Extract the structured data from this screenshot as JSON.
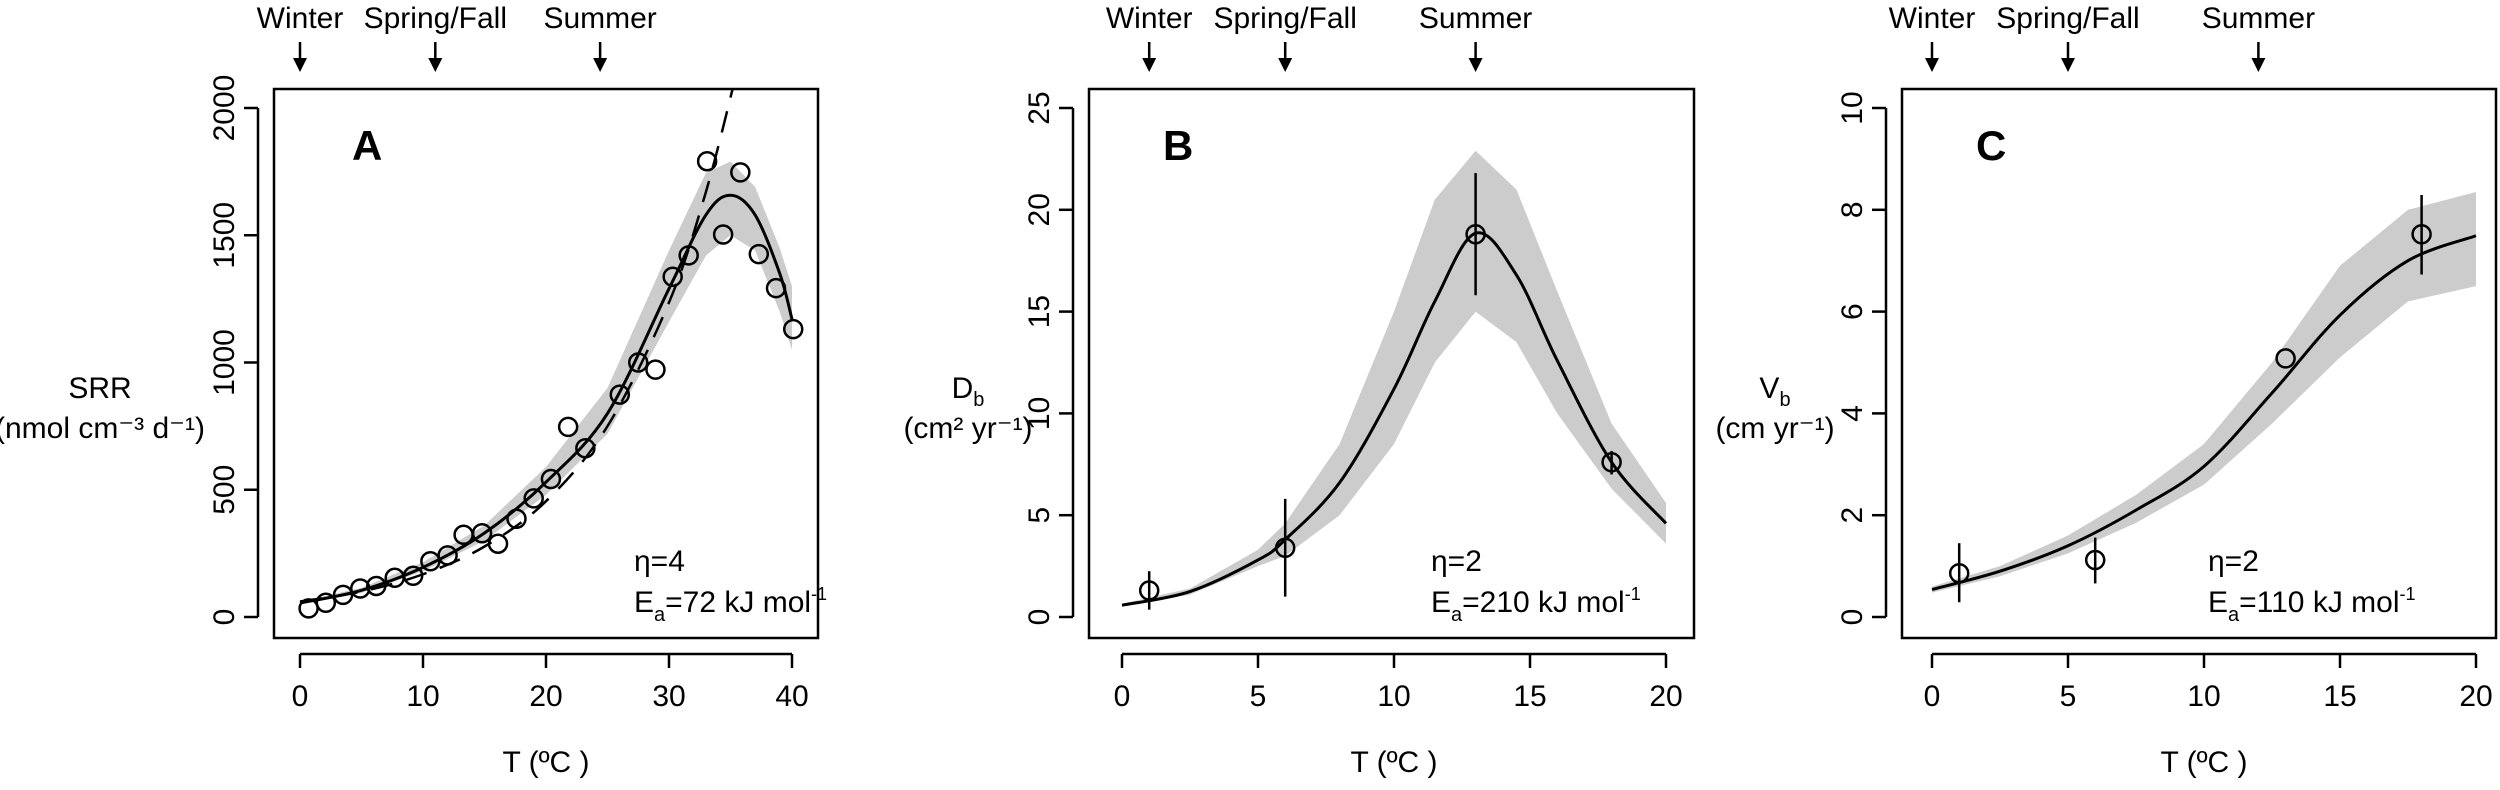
{
  "chart_data": [
    {
      "type": "scatter",
      "panel_label": "A",
      "xlabel": "T (ºC )",
      "ylabel": {
        "symbol": "SRR",
        "sub": "",
        "units": "(nmol cm⁻³ d⁻¹)"
      },
      "xlim": [
        -0.9,
        40.9
      ],
      "ylim": [
        -40,
        2086
      ],
      "x_ticks": [
        0,
        10,
        20,
        30,
        40
      ],
      "y_ticks": [
        0,
        500,
        1000,
        1500,
        2000
      ],
      "grid": false,
      "seasons": [
        {
          "label": "Winter",
          "x": 0
        },
        {
          "label": "Spring/Fall",
          "x": 11
        },
        {
          "label": "Summer",
          "x": 24.4
        }
      ],
      "annotation": {
        "eta": "η=4",
        "ea_symbol": "E",
        "ea_sub": "a",
        "ea_rest": "=72 kJ mol",
        "ea_sup": "-1"
      },
      "points": [
        [
          0.7,
          34
        ],
        [
          2.1,
          56
        ],
        [
          3.5,
          87
        ],
        [
          4.9,
          112
        ],
        [
          6.2,
          122
        ],
        [
          7.7,
          154
        ],
        [
          9.2,
          162
        ],
        [
          10.6,
          219
        ],
        [
          12.0,
          242
        ],
        [
          13.3,
          323
        ],
        [
          14.8,
          329
        ],
        [
          16.1,
          288
        ],
        [
          17.6,
          386
        ],
        [
          19.0,
          466
        ],
        [
          20.4,
          542
        ],
        [
          21.8,
          747
        ],
        [
          23.2,
          663
        ],
        [
          26.0,
          874
        ],
        [
          27.5,
          1000
        ],
        [
          28.9,
          972
        ],
        [
          30.3,
          1337
        ],
        [
          31.6,
          1421
        ],
        [
          33.1,
          1791
        ],
        [
          34.4,
          1503
        ],
        [
          35.8,
          1747
        ],
        [
          37.3,
          1426
        ],
        [
          38.7,
          1292
        ],
        [
          40.1,
          1131
        ]
      ],
      "fit": {
        "x": [
          0,
          5,
          10,
          15,
          20,
          25,
          30,
          33,
          35,
          37,
          39,
          40
        ],
        "y": [
          55,
          105,
          195,
          330,
          530,
          800,
          1290,
          1580,
          1657,
          1580,
          1350,
          1170
        ],
        "upper": [
          60,
          115,
          215,
          360,
          590,
          900,
          1440,
          1745,
          1790,
          1690,
          1450,
          1300
        ],
        "lower": [
          50,
          95,
          180,
          300,
          480,
          720,
          1160,
          1420,
          1500,
          1440,
          1200,
          1050
        ]
      },
      "dashed_fit": {
        "x": [
          0,
          5,
          10,
          15,
          20,
          25,
          30,
          33,
          35.3
        ],
        "y": [
          61,
          100,
          168,
          277,
          455,
          750,
          1236,
          1670,
          2100
        ]
      },
      "colors": {
        "band": "#cccccc",
        "line": "#000000"
      }
    },
    {
      "type": "scatter",
      "panel_label": "B",
      "xlabel": "T (ºC )",
      "ylabel": {
        "symbol": "D",
        "sub": "b",
        "units": "(cm² yr⁻¹)"
      },
      "xlim": [
        -0.6,
        20.6
      ],
      "ylim": [
        -1.0,
        26.2
      ],
      "x_ticks": [
        0,
        5,
        10,
        15,
        20
      ],
      "y_ticks": [
        0,
        5,
        10,
        15,
        20,
        25
      ],
      "grid": false,
      "seasons": [
        {
          "label": "Winter",
          "x": 1
        },
        {
          "label": "Spring/Fall",
          "x": 6
        },
        {
          "label": "Summer",
          "x": 13
        }
      ],
      "annotation": {
        "eta": "η=2",
        "ea_symbol": "E",
        "ea_sub": "a",
        "ea_rest": "=210 kJ mol",
        "ea_sup": "-1"
      },
      "points": [
        {
          "x": 1,
          "y": 1.3,
          "lo": 0.36,
          "hi": 2.25
        },
        {
          "x": 6,
          "y": 3.4,
          "lo": 1.0,
          "hi": 5.8
        },
        {
          "x": 13,
          "y": 18.8,
          "lo": 15.8,
          "hi": 21.8
        },
        {
          "x": 18,
          "y": 7.6,
          "lo": 7.0,
          "hi": 8.15
        }
      ],
      "fit": {
        "x": [
          0,
          2.5,
          5,
          6,
          8,
          10,
          11.5,
          13,
          14.5,
          16,
          18,
          20
        ],
        "y": [
          0.58,
          1.25,
          2.8,
          3.8,
          6.6,
          11.2,
          15.5,
          18.85,
          16.8,
          12.6,
          7.6,
          4.6
        ],
        "upper": [
          0.65,
          1.4,
          3.3,
          4.6,
          8.5,
          15.0,
          20.5,
          22.9,
          21.0,
          16.0,
          9.5,
          5.6
        ],
        "lower": [
          0.5,
          1.1,
          2.5,
          3.0,
          5.0,
          8.5,
          12.5,
          15.0,
          13.5,
          10.0,
          6.3,
          3.6
        ]
      },
      "colors": {
        "band": "#cccccc",
        "line": "#000000"
      }
    },
    {
      "type": "scatter",
      "panel_label": "C",
      "xlabel": "T (ºC )",
      "ylabel": {
        "symbol": "V",
        "sub": "b",
        "units": "(cm yr⁻¹)"
      },
      "xlim": [
        -0.6,
        20.6
      ],
      "ylim": [
        -0.4,
        10.48
      ],
      "x_ticks": [
        0,
        5,
        10,
        15,
        20
      ],
      "y_ticks": [
        0,
        2,
        4,
        6,
        8,
        10
      ],
      "grid": false,
      "seasons": [
        {
          "label": "Winter",
          "x": 0
        },
        {
          "label": "Spring/Fall",
          "x": 5
        },
        {
          "label": "Summer",
          "x": 12
        }
      ],
      "annotation": {
        "eta": "η=2",
        "ea_symbol": "E",
        "ea_sub": "a",
        "ea_rest": "=110 kJ mol",
        "ea_sup": "-1"
      },
      "points": [
        {
          "x": 1,
          "y": 0.86,
          "lo": 0.29,
          "hi": 1.45
        },
        {
          "x": 6,
          "y": 1.12,
          "lo": 0.66,
          "hi": 1.56
        },
        {
          "x": 13,
          "y": 5.08,
          "lo": 5.08,
          "hi": 5.08
        },
        {
          "x": 18,
          "y": 7.52,
          "lo": 6.73,
          "hi": 8.29
        }
      ],
      "fit": {
        "x": [
          0,
          2.5,
          5,
          7.5,
          10,
          12.5,
          15,
          17.5,
          20
        ],
        "y": [
          0.54,
          0.9,
          1.4,
          2.1,
          2.96,
          4.4,
          5.93,
          7.0,
          7.49
        ],
        "upper": [
          0.6,
          1.0,
          1.6,
          2.4,
          3.4,
          5.0,
          6.9,
          8.0,
          8.35
        ],
        "lower": [
          0.48,
          0.8,
          1.25,
          1.85,
          2.6,
          3.8,
          5.1,
          6.2,
          6.5
        ]
      },
      "colors": {
        "band": "#cccccc",
        "line": "#000000"
      }
    }
  ]
}
